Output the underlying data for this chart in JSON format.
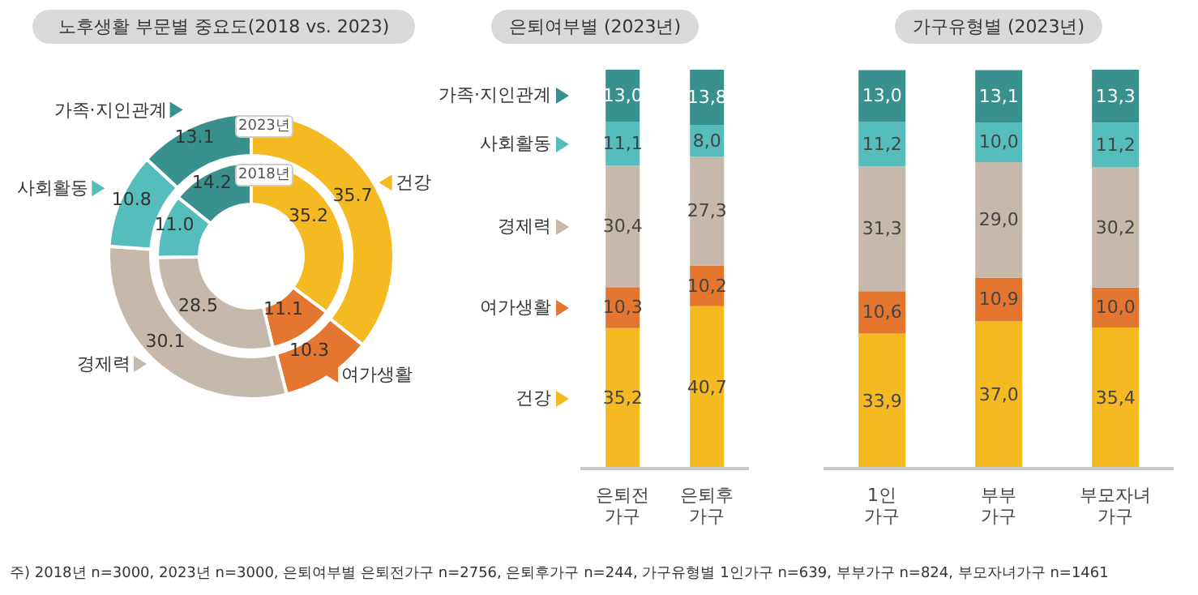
{
  "chart_data": [
    {
      "type": "donut",
      "title": "노후생활 부문별 중요도(2018 vs. 2023)",
      "categories": [
        "건강",
        "여가생활",
        "경제력",
        "사회활동",
        "가족·지인관계"
      ],
      "colors": [
        "#f5b921",
        "#e5762f",
        "#c6b9ac",
        "#56bdbd",
        "#38908f"
      ],
      "legend": "top",
      "series": [
        {
          "name": "2023년",
          "values": [
            35.7,
            10.3,
            30.1,
            10.8,
            13.1
          ],
          "value_labels": [
            "35.7",
            "10.3",
            "30.1",
            "10.8",
            "13.1"
          ]
        },
        {
          "name": "2018년",
          "values": [
            35.2,
            11.1,
            28.5,
            11.0,
            14.2
          ],
          "value_labels": [
            "35.2",
            "11.1",
            "28.5",
            "11.0",
            "14.2"
          ]
        }
      ],
      "annotations": [
        "주) 2018년 n=3000, 2023년 n=3000, 은퇴여부별 은퇴전가구 n=2756, 은퇴후가구 n=244,  가구유형별 1인가구 n=639, 부부가구 n=824, 부모자녀가구 n=1461"
      ]
    },
    {
      "type": "bar",
      "stacked": true,
      "title": "은퇴여부별 (2023년)",
      "categories": [
        "은퇴전 가구",
        "은퇴후 가구"
      ],
      "legend": "left",
      "series": [
        {
          "name": "건강",
          "color": "#f5b921",
          "values": [
            35.2,
            40.7
          ],
          "value_labels": [
            "35,2",
            "40,7"
          ]
        },
        {
          "name": "여가생활",
          "color": "#e5762f",
          "values": [
            10.3,
            10.2
          ],
          "value_labels": [
            "10,3",
            "10,2"
          ]
        },
        {
          "name": "경제력",
          "color": "#c6b9ac",
          "values": [
            30.4,
            27.3
          ],
          "value_labels": [
            "30,4",
            "27,3"
          ]
        },
        {
          "name": "사회활동",
          "color": "#56bdbd",
          "values": [
            11.1,
            8.0
          ],
          "value_labels": [
            "11,1",
            "8,0"
          ]
        },
        {
          "name": "가족·지인관계",
          "color": "#38908f",
          "values": [
            13.0,
            13.8
          ],
          "value_labels": [
            "13,0",
            "13,8"
          ]
        }
      ]
    },
    {
      "type": "bar",
      "stacked": true,
      "title": "가구유형별 (2023년)",
      "categories": [
        "1인 가구",
        "부부 가구",
        "부모자녀 가구"
      ],
      "series": [
        {
          "color": "#f5b921",
          "values": [
            33.9,
            37.0,
            35.4
          ],
          "value_labels": [
            "33,9",
            "37,0",
            "35,4"
          ]
        },
        {
          "color": "#e5762f",
          "values": [
            10.6,
            10.9,
            10.0
          ],
          "value_labels": [
            "10,6",
            "10,9",
            "10,0"
          ]
        },
        {
          "color": "#c6b9ac",
          "values": [
            31.3,
            29.0,
            30.2
          ],
          "value_labels": [
            "31,3",
            "29,0",
            "30,2"
          ]
        },
        {
          "color": "#56bdbd",
          "values": [
            11.2,
            10.0,
            11.2
          ],
          "value_labels": [
            "11,2",
            "10,0",
            "11,2"
          ]
        },
        {
          "color": "#38908f",
          "values": [
            13.0,
            13.1,
            13.3
          ],
          "value_labels": [
            "13,0",
            "13,1",
            "13,3"
          ]
        }
      ]
    }
  ]
}
